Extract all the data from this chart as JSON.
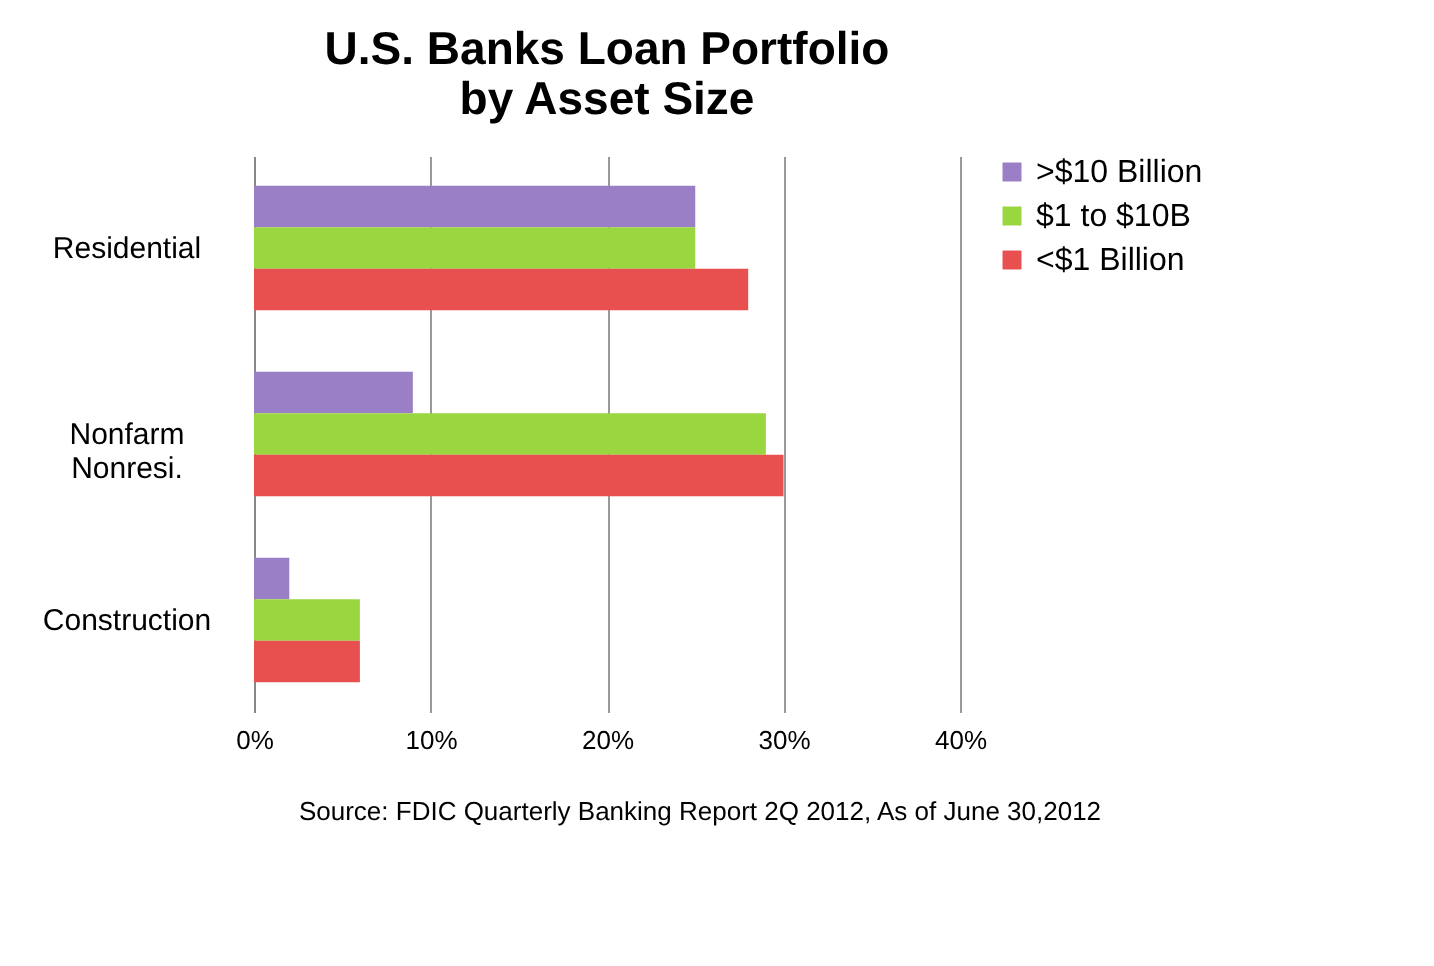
{
  "chart_data": {
    "type": "bar",
    "orientation": "horizontal",
    "title": "U.S. Banks Loan Portfolio\nby Asset Size",
    "categories": [
      "Residential",
      "Nonfarm Nonresi.",
      "Construction"
    ],
    "series": [
      {
        "name": ">$10 Billion",
        "color": "#9b7fc6",
        "values": [
          25,
          9,
          2
        ]
      },
      {
        "name": "$1 to $10B",
        "color": "#99d63f",
        "values": [
          25,
          29,
          6
        ]
      },
      {
        "name": "<$1 Billion",
        "color": "#e8504f",
        "values": [
          28,
          30,
          6
        ]
      }
    ],
    "xlim": [
      0,
      40
    ],
    "xticks": [
      {
        "value": 0,
        "label": "0%"
      },
      {
        "value": 10,
        "label": "10%"
      },
      {
        "value": 20,
        "label": "20%"
      },
      {
        "value": 30,
        "label": "30%"
      },
      {
        "value": 40,
        "label": "40%"
      }
    ],
    "grid": "x",
    "legend": "right",
    "annotations": [
      "Source: FDIC Quarterly Banking Report 2Q 2012, As of June 30,2012"
    ]
  }
}
